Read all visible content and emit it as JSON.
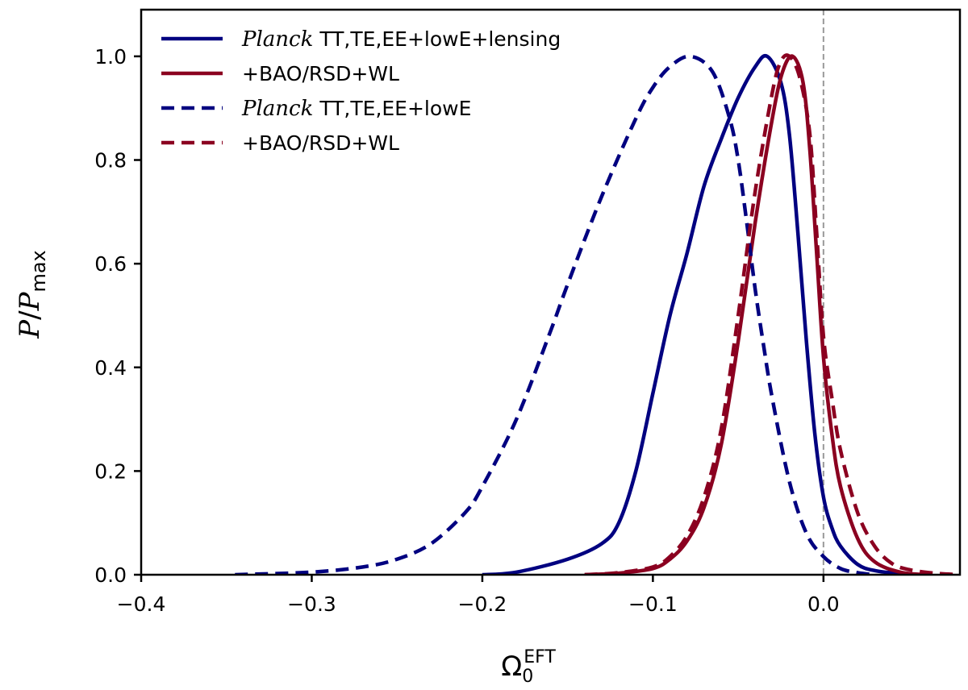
{
  "chart_data": {
    "type": "line",
    "title": "",
    "xlabel": {
      "main": "Ω",
      "sub": "0",
      "sup": "EFT"
    },
    "ylabel": {
      "num": "P",
      "slash": "/",
      "den": "P",
      "den_sub": "max"
    },
    "xlim": [
      -0.4,
      0.08
    ],
    "ylim": [
      0,
      1.09
    ],
    "xticks": [
      -0.4,
      -0.3,
      -0.2,
      -0.1,
      0.0
    ],
    "xtick_labels": [
      "−0.4",
      "−0.3",
      "−0.2",
      "−0.1",
      "0.0"
    ],
    "yticks": [
      0,
      0.2,
      0.4,
      0.6,
      0.8,
      1.0
    ],
    "ytick_labels": [
      "0.0",
      "0.2",
      "0.4",
      "0.6",
      "0.8",
      "1.0"
    ],
    "grid": false,
    "legend_position": "top-left",
    "reference_line": {
      "x": 0.0,
      "style": "dashed",
      "color": "#999999"
    },
    "series": [
      {
        "name": "Planck TT,TE,EE+lowE+lensing",
        "legend_italic": "Planck",
        "legend_text": " TT,TE,EE+lowE+lensing",
        "color": "#000080",
        "dash": "solid",
        "x": [
          -0.2,
          -0.18,
          -0.15,
          -0.13,
          -0.12,
          -0.11,
          -0.1,
          -0.09,
          -0.08,
          -0.07,
          -0.06,
          -0.05,
          -0.04,
          -0.033,
          -0.025,
          -0.02,
          -0.015,
          -0.01,
          -0.005,
          0.0,
          0.005,
          0.01,
          0.02,
          0.03,
          0.045,
          0.06
        ],
        "y": [
          0.0,
          0.005,
          0.03,
          0.06,
          0.1,
          0.2,
          0.35,
          0.5,
          0.62,
          0.75,
          0.84,
          0.92,
          0.98,
          1.0,
          0.95,
          0.85,
          0.66,
          0.45,
          0.27,
          0.15,
          0.09,
          0.055,
          0.02,
          0.008,
          0.002,
          0.0
        ]
      },
      {
        "name": "+BAO/RSD+WL",
        "legend_italic": "",
        "legend_text": "+BAO/RSD+WL",
        "color": "#8b0020",
        "dash": "solid",
        "x": [
          -0.14,
          -0.12,
          -0.1,
          -0.09,
          -0.08,
          -0.07,
          -0.06,
          -0.05,
          -0.04,
          -0.03,
          -0.024,
          -0.018,
          -0.012,
          -0.008,
          -0.004,
          0.0,
          0.005,
          0.01,
          0.02,
          0.03,
          0.045,
          0.06
        ],
        "y": [
          0.0,
          0.003,
          0.012,
          0.03,
          0.065,
          0.13,
          0.25,
          0.45,
          0.68,
          0.88,
          0.97,
          1.0,
          0.95,
          0.82,
          0.62,
          0.42,
          0.27,
          0.17,
          0.07,
          0.025,
          0.005,
          0.0
        ]
      },
      {
        "name": "Planck TT,TE,EE+lowE",
        "legend_italic": "Planck",
        "legend_text": " TT,TE,EE+lowE",
        "color": "#000080",
        "dash": "dashed",
        "x": [
          -0.345,
          -0.3,
          -0.27,
          -0.25,
          -0.23,
          -0.21,
          -0.2,
          -0.18,
          -0.16,
          -0.15,
          -0.13,
          -0.11,
          -0.1,
          -0.09,
          -0.078,
          -0.065,
          -0.055,
          -0.05,
          -0.045,
          -0.04,
          -0.035,
          -0.03,
          -0.02,
          -0.01,
          0.0,
          0.01,
          0.02,
          0.03
        ],
        "y": [
          0.0,
          0.005,
          0.015,
          0.03,
          0.06,
          0.12,
          0.17,
          0.3,
          0.47,
          0.56,
          0.73,
          0.88,
          0.94,
          0.98,
          1.0,
          0.97,
          0.88,
          0.8,
          0.68,
          0.55,
          0.44,
          0.34,
          0.18,
          0.08,
          0.035,
          0.012,
          0.004,
          0.0
        ]
      },
      {
        "name": "+BAO/RSD+WL",
        "legend_italic": "",
        "legend_text": "+BAO/RSD+WL",
        "color": "#8b0020",
        "dash": "dashed",
        "x": [
          -0.14,
          -0.12,
          -0.1,
          -0.09,
          -0.08,
          -0.07,
          -0.06,
          -0.05,
          -0.04,
          -0.03,
          -0.025,
          -0.02,
          -0.014,
          -0.008,
          -0.004,
          0.0,
          0.005,
          0.01,
          0.02,
          0.03,
          0.04,
          0.05,
          0.065,
          0.08
        ],
        "y": [
          0.0,
          0.004,
          0.015,
          0.035,
          0.075,
          0.15,
          0.28,
          0.5,
          0.74,
          0.93,
          0.99,
          1.0,
          0.96,
          0.85,
          0.66,
          0.46,
          0.34,
          0.24,
          0.12,
          0.055,
          0.022,
          0.01,
          0.003,
          0.0
        ]
      }
    ]
  }
}
